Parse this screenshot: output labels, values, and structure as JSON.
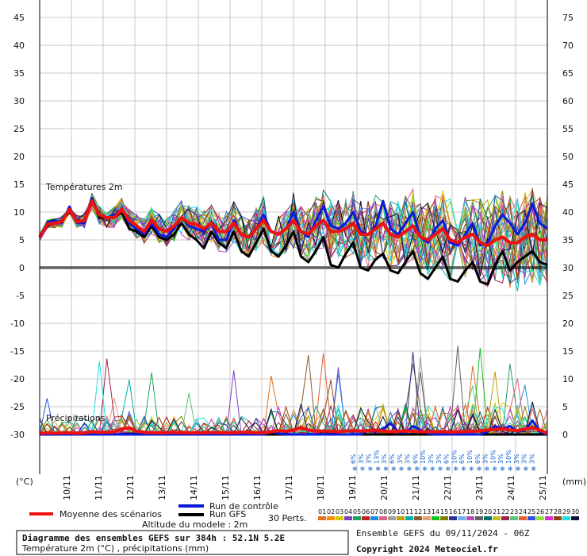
{
  "chart_data": {
    "type": "line",
    "left_axis_label": "(°C)",
    "right_axis_label": "(mm)",
    "temperature_section_label": "Températures 2m",
    "precip_section_label": "Précipitations",
    "left_ticks": [
      45,
      40,
      35,
      30,
      25,
      20,
      15,
      10,
      5,
      0,
      -5,
      -10,
      -15,
      -20,
      -25,
      -30
    ],
    "right_ticks": [
      75,
      70,
      65,
      60,
      55,
      50,
      45,
      40,
      35,
      30,
      25,
      20,
      15,
      10,
      5,
      0
    ],
    "date_labels": [
      "10/11",
      "11/11",
      "12/11",
      "13/11",
      "14/11",
      "15/11",
      "16/11",
      "17/11",
      "18/11",
      "19/11",
      "20/11",
      "21/11",
      "22/11",
      "23/11",
      "24/11",
      "25/11"
    ],
    "temp_ylim": [
      -30,
      45
    ],
    "series": [
      {
        "name": "Moyenne des scénarios",
        "color": "#ee1111",
        "values": [
          5.5,
          7.8,
          8.0,
          8.3,
          10.5,
          8.2,
          8.5,
          12.0,
          9.5,
          9.0,
          9.0,
          10.5,
          8.5,
          7.5,
          6.5,
          8.5,
          7.0,
          6.5,
          7.5,
          9.0,
          8.0,
          7.8,
          7.0,
          8.0,
          6.5,
          6.5,
          8.0,
          6.0,
          5.5,
          7.0,
          8.5,
          6.5,
          6.0,
          7.0,
          8.5,
          6.5,
          6.0,
          7.5,
          8.5,
          6.5,
          6.5,
          7.0,
          8.0,
          6.0,
          6.0,
          7.0,
          8.0,
          6.0,
          5.5,
          6.5,
          7.5,
          5.5,
          5.0,
          6.0,
          7.0,
          5.0,
          4.5,
          5.5,
          6.0,
          4.5,
          4.0,
          5.0,
          5.5,
          4.5,
          4.5,
          5.5,
          6.0,
          5.0,
          5.0
        ]
      },
      {
        "name": "Run de contrôle",
        "color": "#0a1ad8",
        "values": [
          5.5,
          8.0,
          8.5,
          8.0,
          11.0,
          8.0,
          8.0,
          12.5,
          9.5,
          9.0,
          9.5,
          10.5,
          8.0,
          7.0,
          6.0,
          8.0,
          6.0,
          5.5,
          7.0,
          9.0,
          7.5,
          7.0,
          6.5,
          8.0,
          5.0,
          5.0,
          8.5,
          6.0,
          5.5,
          7.0,
          9.5,
          6.5,
          6.0,
          7.0,
          10.0,
          6.5,
          5.5,
          8.5,
          11.0,
          7.5,
          7.0,
          8.0,
          10.0,
          6.5,
          6.0,
          7.5,
          12.0,
          7.0,
          6.0,
          8.0,
          10.0,
          5.5,
          4.5,
          7.0,
          8.5,
          4.5,
          4.0,
          6.0,
          8.0,
          4.0,
          4.5,
          7.5,
          9.5,
          8.0,
          6.0,
          8.0,
          11.5,
          8.0,
          7.0
        ]
      },
      {
        "name": "Run GFS",
        "color": "#000000",
        "values": [
          5.5,
          7.5,
          8.0,
          8.5,
          10.0,
          8.5,
          8.0,
          12.5,
          9.0,
          9.0,
          9.0,
          10.0,
          7.0,
          6.5,
          5.5,
          7.5,
          5.5,
          5.0,
          6.0,
          8.0,
          6.0,
          5.0,
          3.5,
          6.5,
          4.5,
          3.5,
          6.5,
          3.0,
          2.0,
          4.5,
          7.0,
          3.0,
          2.0,
          4.0,
          6.5,
          2.0,
          1.0,
          3.0,
          5.5,
          0.5,
          0.0,
          2.5,
          4.5,
          0.0,
          -0.5,
          1.5,
          2.5,
          -0.5,
          -1.0,
          1.0,
          3.0,
          -1.0,
          -2.0,
          0.0,
          2.0,
          -2.0,
          -2.5,
          -0.5,
          1.0,
          -2.5,
          -3.0,
          0.5,
          3.0,
          -0.5,
          1.0,
          2.0,
          3.0,
          1.0,
          0.5
        ]
      }
    ],
    "precip_series": [
      {
        "name": "Moyenne des scénarios",
        "color": "#ee1111",
        "values": [
          0.2,
          0.3,
          0.2,
          0.3,
          0.3,
          0.2,
          0.3,
          0.5,
          0.4,
          0.4,
          0.5,
          1.0,
          1.2,
          0.6,
          0.4,
          0.3,
          0.3,
          0.3,
          0.4,
          0.3,
          0.3,
          0.3,
          0.3,
          0.4,
          0.3,
          0.3,
          0.3,
          0.4,
          0.4,
          0.3,
          0.3,
          0.5,
          0.7,
          0.6,
          0.8,
          1.2,
          0.8,
          0.6,
          0.6,
          0.6,
          0.5,
          0.6,
          0.7,
          0.6,
          0.7,
          0.8,
          0.6,
          0.5,
          0.6,
          0.6,
          0.6,
          0.5,
          0.5,
          0.5,
          0.5,
          0.4,
          0.5,
          0.5,
          0.6,
          0.6,
          0.8,
          0.9,
          1.0,
          0.8,
          0.7,
          1.0,
          1.2,
          0.8,
          0.2
        ]
      },
      {
        "name": "Run de contrôle",
        "color": "#0a1ad8",
        "values": [
          0,
          0,
          0,
          0,
          0,
          0,
          0,
          0,
          0,
          0,
          0,
          0,
          0,
          0,
          0,
          0,
          0,
          0,
          0,
          0,
          0,
          0,
          0,
          0,
          0,
          0,
          0,
          0,
          0,
          0,
          0,
          0.5,
          0.2,
          0,
          0,
          0,
          0,
          0,
          0,
          0,
          0,
          0,
          0,
          0,
          0.8,
          0.5,
          1.0,
          2.0,
          0.5,
          0.3,
          1.5,
          0.8,
          0.2,
          0,
          0,
          0,
          0,
          0,
          0,
          0,
          0.5,
          1.5,
          1.0,
          1.5,
          0.5,
          0.8,
          2.5,
          0.5,
          0
        ]
      },
      {
        "name": "Run GFS",
        "color": "#000000",
        "values": [
          0,
          0,
          0,
          0,
          0,
          0,
          0,
          0,
          0,
          0,
          0,
          0,
          0,
          0,
          0,
          0,
          0,
          0,
          0,
          0,
          0,
          0,
          0,
          0,
          0,
          0,
          0,
          0,
          0,
          0,
          0,
          0,
          0,
          0,
          0,
          0,
          0,
          0,
          0,
          0,
          0,
          0,
          0,
          0,
          0,
          0,
          0,
          0,
          0,
          0,
          0,
          0,
          0,
          0,
          0,
          0,
          0,
          0,
          0,
          0,
          0,
          0,
          0,
          0,
          0,
          0,
          0,
          0,
          0
        ]
      }
    ],
    "snow_labels": [
      "6%",
      "3%",
      "3%",
      "13%",
      "3%",
      "6%",
      "3%",
      "3%",
      "6%",
      "10%",
      "3%",
      "3%",
      "6%",
      "10%",
      "6%",
      "10%",
      "6%",
      "3%",
      "10%",
      "3%",
      "10%",
      "3%",
      "3%",
      "3%"
    ],
    "legend": {
      "mean": "Moyenne des scénarios",
      "control": "Run de contrôle",
      "gfs": "Run GFS",
      "perts": "30 Perts.",
      "altitude": "Altitude du modele : 2m"
    },
    "pert_numbers": [
      "01",
      "02",
      "03",
      "04",
      "05",
      "06",
      "07",
      "08",
      "09",
      "10",
      "11",
      "12",
      "13",
      "14",
      "15",
      "16",
      "17",
      "18",
      "19",
      "20",
      "21",
      "22",
      "23",
      "24",
      "25",
      "26",
      "27",
      "28",
      "29",
      "30"
    ],
    "pert_colors": [
      "#e07020",
      "#ff8c00",
      "#d8c800",
      "#8040c0",
      "#20a060",
      "#c02020",
      "#208ce0",
      "#e06080",
      "#a0a0a0",
      "#c0a000",
      "#00b0b0",
      "#8c5a28",
      "#e0a070",
      "#10c020",
      "#808000",
      "#303090",
      "#70b0f0",
      "#b050b0",
      "#606060",
      "#007070",
      "#c0c020",
      "#a02050",
      "#60c080",
      "#e06030",
      "#3050e0",
      "#90e040",
      "#d030d0",
      "#904010",
      "#20e0e0",
      "#101040"
    ],
    "info": {
      "title": "Diagramme des ensembles GEFS sur 384h : 52.1N 5.2E",
      "subtitle": "Température 2m (°C) , précipitations (mm)",
      "ensemble": "Ensemble GEFS du 09/11/2024 - 06Z",
      "copyright": "Copyright 2024 Meteociel.fr"
    }
  }
}
